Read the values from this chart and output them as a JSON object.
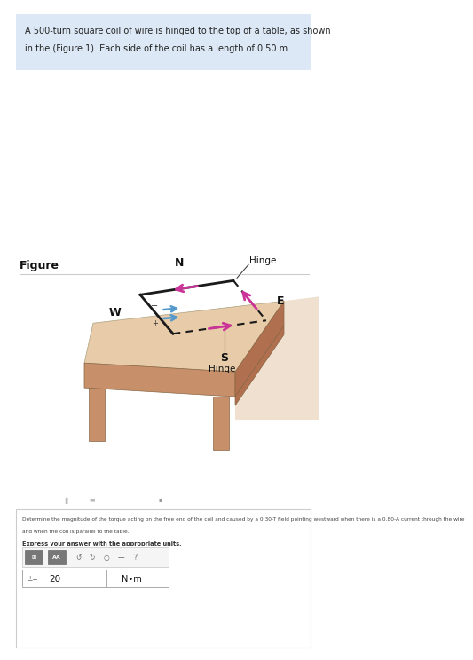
{
  "bg_color": "#ffffff",
  "top_box_color": "#dce8f5",
  "top_text_line1": "A 500-turn square coil of wire is hinged to the top of a table, as shown",
  "top_text_line2": "in the (Figure 1). Each side of the coil has a length of 0.50 m.",
  "figure_label": "Figure",
  "bottom_question_line1": "Determine the magnitude of the torque acting on the free end of the coil and caused by a 0.30-T field pointing westward when there is a 0.80-A current through the wire",
  "bottom_question_line2": "and when the coil is parallel to the table.",
  "express_line": "Express your answer with the appropriate units.",
  "answer_value": "20",
  "answer_units": "N•m",
  "table_top_color": "#e8cba8",
  "table_side_color": "#c8906a",
  "table_dark_color": "#b07050",
  "coil_color": "#1a1a1a",
  "arrow_magenta": "#cc3399",
  "arrow_blue": "#5599cc",
  "separator_color": "#cccccc",
  "outer_border_color": "#cccccc",
  "leg_color": "#c8906a",
  "wall_color": "#e8d0b8"
}
